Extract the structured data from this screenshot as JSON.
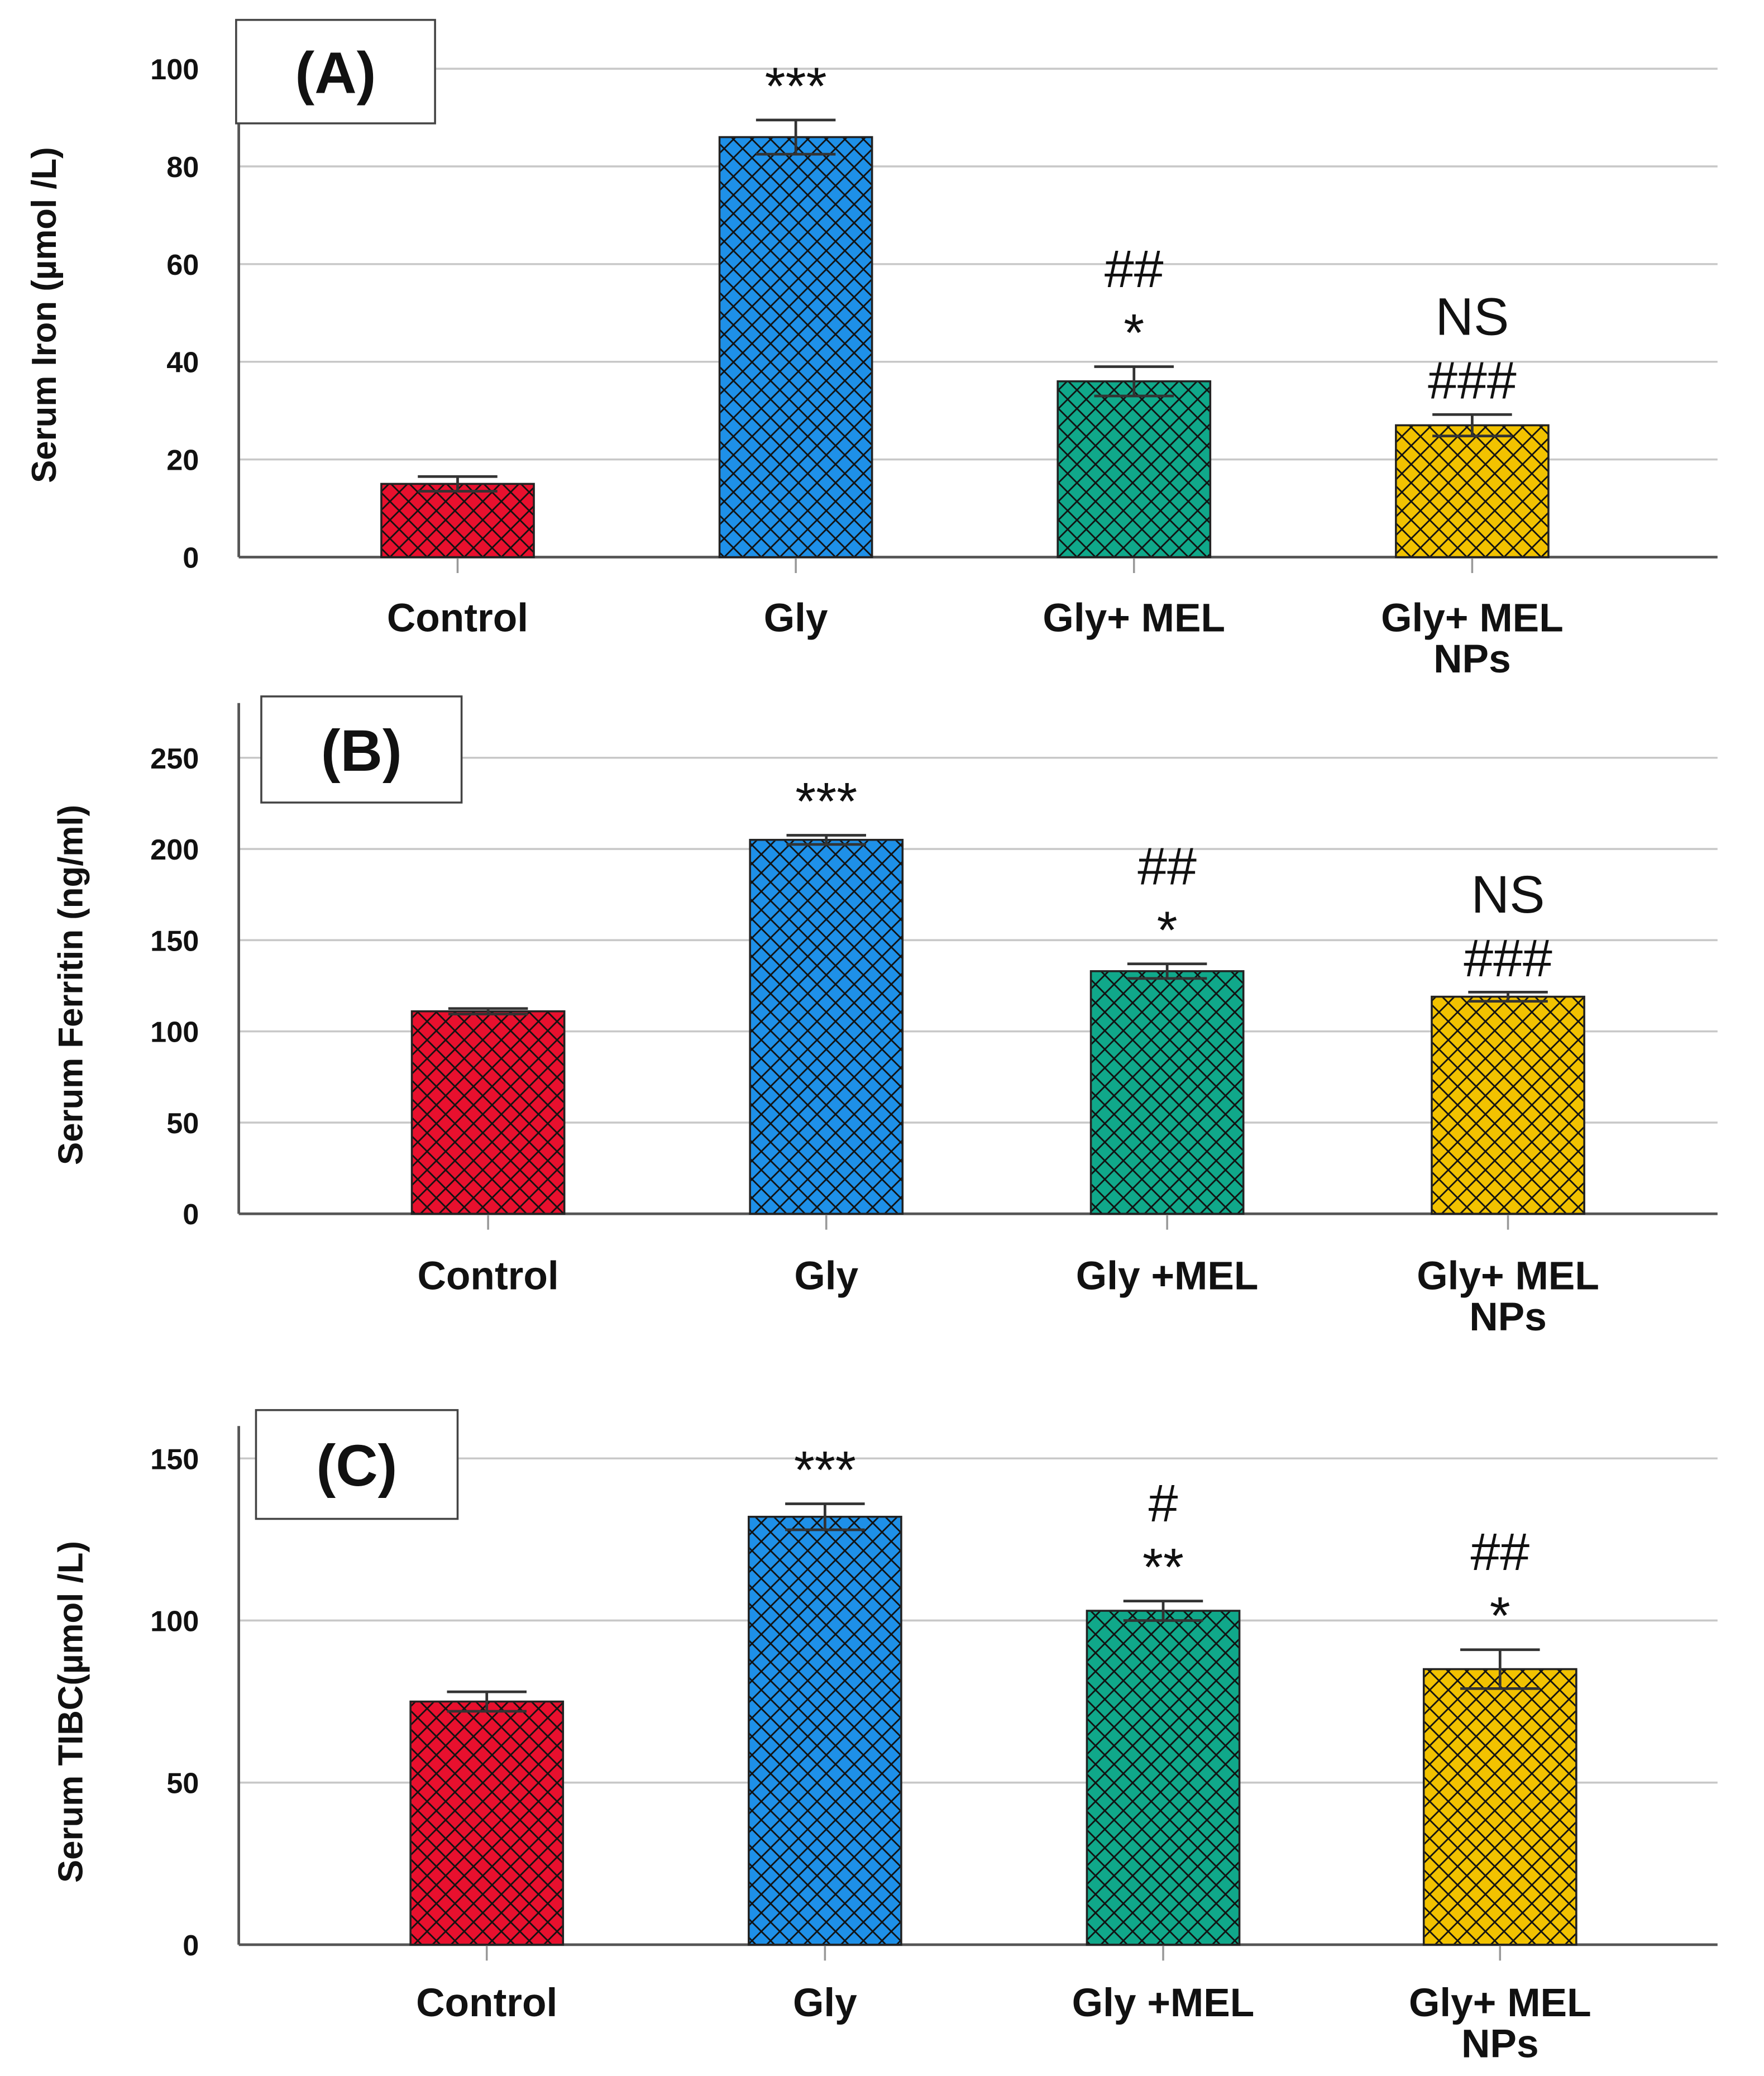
{
  "chart_data": [
    {
      "type": "bar",
      "panel_label": "(A)",
      "ylabel": "Serum Iron (µmol /L)",
      "categories": [
        "Control",
        "Gly",
        "Gly+ MEL",
        "Gly+ MEL\nNPs"
      ],
      "values": [
        15,
        86,
        36,
        27
      ],
      "errors": [
        1.5,
        3.5,
        3,
        2.2
      ],
      "annotations": [
        [],
        [
          "***"
        ],
        [
          "##",
          "*"
        ],
        [
          "NS",
          "###"
        ]
      ],
      "yticks": [
        0,
        20,
        40,
        60,
        80,
        100
      ],
      "ylim": [
        0,
        110
      ],
      "grid": true
    },
    {
      "type": "bar",
      "panel_label": "(B)",
      "ylabel": "Serum Ferritin (ng/ml)",
      "categories": [
        "Control",
        "Gly",
        "Gly +MEL",
        "Gly+ MEL\nNPs"
      ],
      "values": [
        111,
        205,
        133,
        119
      ],
      "errors": [
        1.5,
        2.5,
        4,
        2.5
      ],
      "annotations": [
        [],
        [
          "***"
        ],
        [
          "##",
          "*"
        ],
        [
          "NS",
          "###"
        ]
      ],
      "yticks": [
        0,
        50,
        100,
        150,
        200,
        250
      ],
      "ylim": [
        0,
        280
      ],
      "grid": true
    },
    {
      "type": "bar",
      "panel_label": "(C)",
      "ylabel": "Serum TIBC(µmol /L)",
      "categories": [
        "Control",
        "Gly",
        "Gly +MEL",
        "Gly+ MEL\nNPs"
      ],
      "values": [
        75,
        132,
        103,
        85
      ],
      "errors": [
        3,
        4,
        3,
        6
      ],
      "annotations": [
        [],
        [
          "***"
        ],
        [
          "#",
          "**"
        ],
        [
          "##",
          "*"
        ]
      ],
      "yticks": [
        0,
        50,
        100,
        150
      ],
      "ylim": [
        0,
        160
      ],
      "grid": true
    }
  ],
  "colors": {
    "bars": [
      "#e8102e",
      "#1e90e8",
      "#10a88a",
      "#f2c200"
    ],
    "grid": "#c8c8c8",
    "axis": "#555555"
  }
}
